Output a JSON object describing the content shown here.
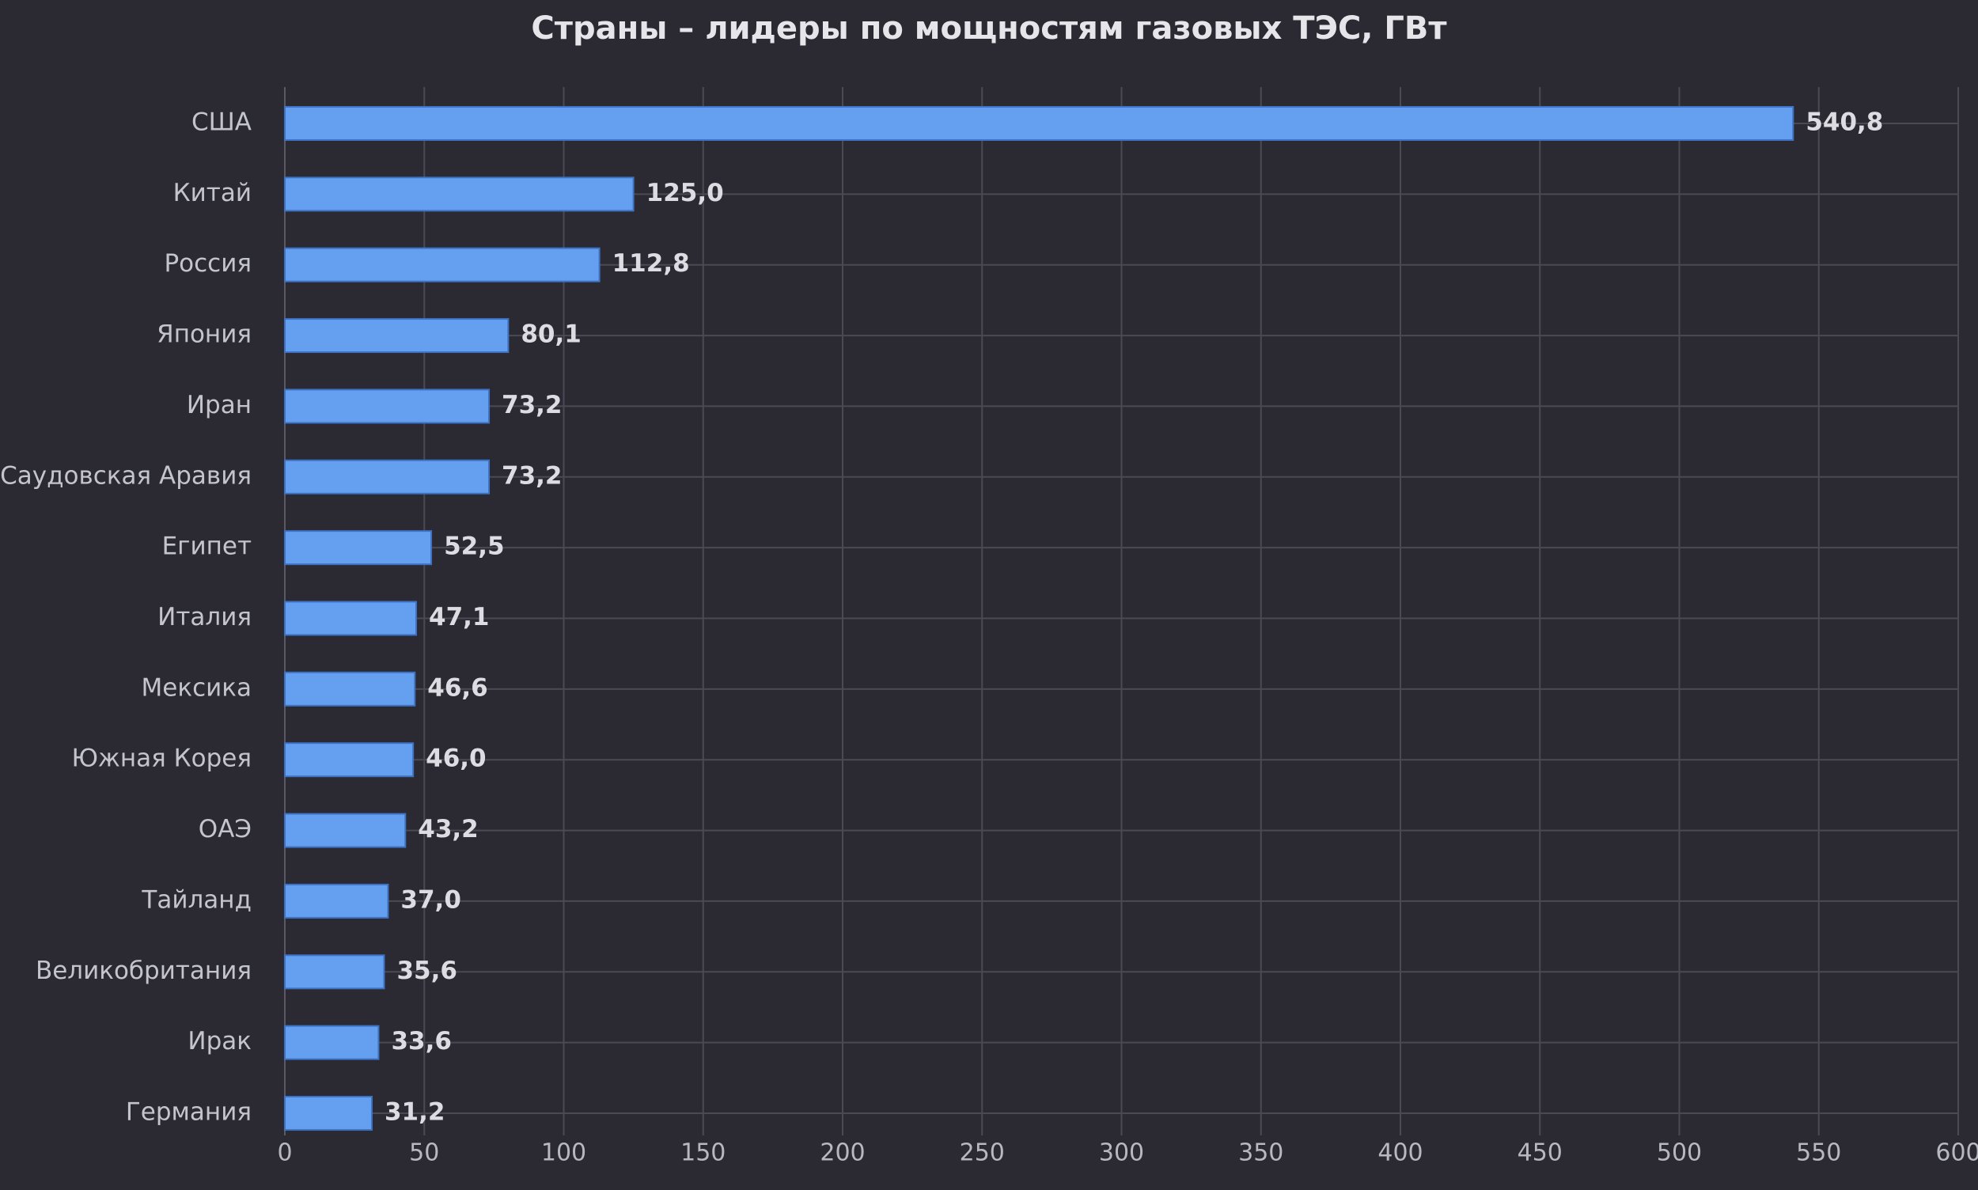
{
  "chart_data": {
    "type": "bar",
    "orientation": "horizontal",
    "title": "Страны – лидеры по мощностям газовых ТЭС, ГВт",
    "xlabel": "",
    "ylabel": "",
    "categories": [
      "США",
      "Китай",
      "Россия",
      "Япония",
      "Иран",
      "Саудовская Аравия",
      "Египет",
      "Италия",
      "Мексика",
      "Южная Корея",
      "ОАЭ",
      "Тайланд",
      "Великобритания",
      "Ирак",
      "Германия"
    ],
    "values": [
      540.8,
      125.0,
      112.8,
      80.1,
      73.2,
      73.2,
      52.5,
      47.1,
      46.6,
      46.0,
      43.2,
      37.0,
      35.6,
      33.6,
      31.2
    ],
    "value_labels": [
      "540,8",
      "125,0",
      "112,8",
      "80,1",
      "73,2",
      "73,2",
      "52,5",
      "47,1",
      "46,6",
      "46,0",
      "43,2",
      "37,0",
      "35,6",
      "33,6",
      "31,2"
    ],
    "xlim": [
      0,
      600
    ],
    "x_ticks": [
      0,
      50,
      100,
      150,
      200,
      250,
      300,
      350,
      400,
      450,
      500,
      550,
      600
    ],
    "grid": true,
    "legend": "none",
    "colors": {
      "background": "#2b2a33",
      "bar": "#64a0ef",
      "bar_border": "#3d72c4",
      "grid": "#4b4a54",
      "text": "#c4c4cc"
    }
  }
}
